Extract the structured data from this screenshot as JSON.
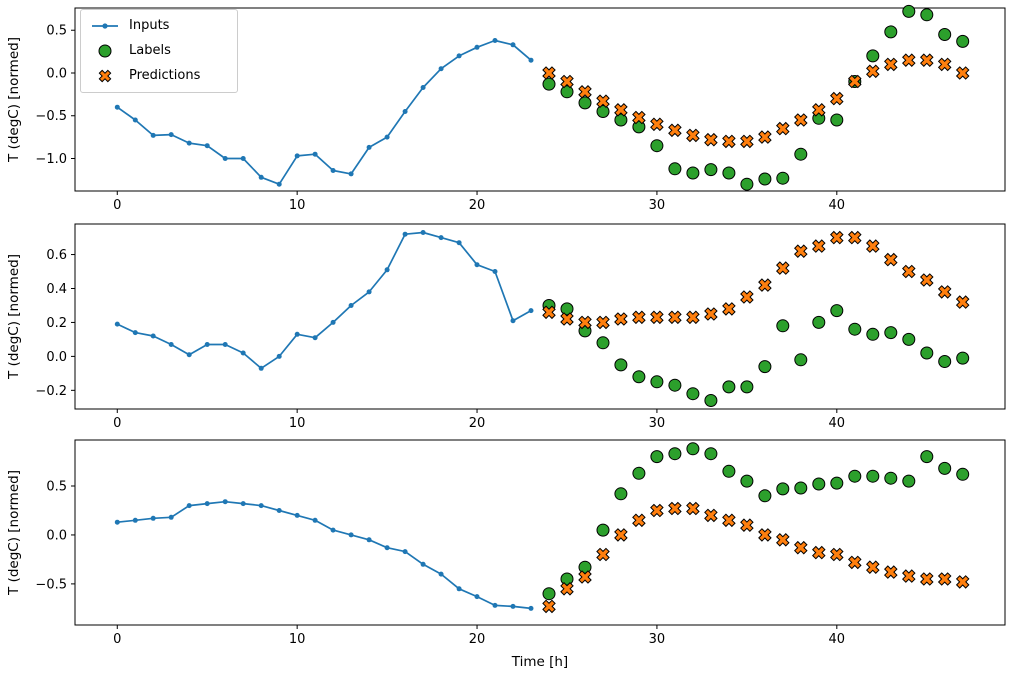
{
  "legend": {
    "items": [
      {
        "label": "Inputs",
        "marker": "line-dot",
        "color": "#1f77b4"
      },
      {
        "label": "Labels",
        "marker": "circle",
        "color": "#2ca02c"
      },
      {
        "label": "Predictions",
        "marker": "X",
        "color": "#ff7f0e"
      }
    ]
  },
  "chart_data": [
    {
      "type": "line",
      "title": "",
      "xlabel": "",
      "ylabel": "T (degC) [normed]",
      "xlim": [
        -2.35,
        49.35
      ],
      "ylim": [
        -1.38,
        0.76
      ],
      "xticks": [
        0,
        10,
        20,
        30,
        40
      ],
      "xtick_labels": [
        "0",
        "10",
        "20",
        "30",
        "40"
      ],
      "yticks": [
        0.5,
        0.0,
        -0.5,
        -1.0
      ],
      "ytick_labels": [
        "0.5",
        "0.0",
        "−0.5",
        "−1.0"
      ],
      "grid": false,
      "legend_position": "upper left",
      "series": [
        {
          "name": "Inputs",
          "kind": "line",
          "marker": "dot",
          "color": "#1f77b4",
          "x": [
            0,
            1,
            2,
            3,
            4,
            5,
            6,
            7,
            8,
            9,
            10,
            11,
            12,
            13,
            14,
            15,
            16,
            17,
            18,
            19,
            20,
            21,
            22,
            23
          ],
          "y": [
            -0.4,
            -0.55,
            -0.73,
            -0.72,
            -0.82,
            -0.85,
            -1.0,
            -1.0,
            -1.22,
            -1.3,
            -0.97,
            -0.95,
            -1.14,
            -1.18,
            -0.87,
            -0.75,
            -0.45,
            -0.17,
            0.05,
            0.2,
            0.3,
            0.38,
            0.33,
            0.15
          ]
        },
        {
          "name": "Labels",
          "kind": "scatter",
          "marker": "circle",
          "color": "#2ca02c",
          "x": [
            24,
            25,
            26,
            27,
            28,
            29,
            30,
            31,
            32,
            33,
            34,
            35,
            36,
            37,
            38,
            39,
            40,
            41,
            42,
            43,
            44,
            45,
            46,
            47
          ],
          "y": [
            -0.13,
            -0.22,
            -0.35,
            -0.45,
            -0.55,
            -0.63,
            -0.85,
            -1.12,
            -1.17,
            -1.13,
            -1.17,
            -1.3,
            -1.24,
            -1.23,
            -0.95,
            -0.53,
            -0.55,
            -0.1,
            0.2,
            0.48,
            0.72,
            0.68,
            0.45,
            0.37
          ]
        },
        {
          "name": "Predictions",
          "kind": "scatter",
          "marker": "X",
          "color": "#ff7f0e",
          "x": [
            24,
            25,
            26,
            27,
            28,
            29,
            30,
            31,
            32,
            33,
            34,
            35,
            36,
            37,
            38,
            39,
            40,
            41,
            42,
            43,
            44,
            45,
            46,
            47
          ],
          "y": [
            0.0,
            -0.1,
            -0.22,
            -0.33,
            -0.43,
            -0.52,
            -0.6,
            -0.67,
            -0.73,
            -0.78,
            -0.8,
            -0.8,
            -0.75,
            -0.65,
            -0.55,
            -0.43,
            -0.3,
            -0.1,
            0.02,
            0.1,
            0.15,
            0.15,
            0.1,
            0.0
          ]
        }
      ]
    },
    {
      "type": "line",
      "title": "",
      "xlabel": "",
      "ylabel": "T (degC) [normed]",
      "xlim": [
        -2.35,
        49.35
      ],
      "ylim": [
        -0.31,
        0.78
      ],
      "xticks": [
        0,
        10,
        20,
        30,
        40
      ],
      "xtick_labels": [
        "0",
        "10",
        "20",
        "30",
        "40"
      ],
      "yticks": [
        0.6,
        0.4,
        0.2,
        0.0,
        -0.2
      ],
      "ytick_labels": [
        "0.6",
        "0.4",
        "0.2",
        "0.0",
        "−0.2"
      ],
      "grid": false,
      "series": [
        {
          "name": "Inputs",
          "kind": "line",
          "marker": "dot",
          "color": "#1f77b4",
          "x": [
            0,
            1,
            2,
            3,
            4,
            5,
            6,
            7,
            8,
            9,
            10,
            11,
            12,
            13,
            14,
            15,
            16,
            17,
            18,
            19,
            20,
            21,
            22,
            23
          ],
          "y": [
            0.19,
            0.14,
            0.12,
            0.07,
            0.01,
            0.07,
            0.07,
            0.02,
            -0.07,
            0.0,
            0.13,
            0.11,
            0.2,
            0.3,
            0.38,
            0.51,
            0.72,
            0.73,
            0.7,
            0.67,
            0.54,
            0.5,
            0.21,
            0.27
          ]
        },
        {
          "name": "Labels",
          "kind": "scatter",
          "marker": "circle",
          "color": "#2ca02c",
          "x": [
            24,
            25,
            26,
            27,
            28,
            29,
            30,
            31,
            32,
            33,
            34,
            35,
            36,
            37,
            38,
            39,
            40,
            41,
            42,
            43,
            44,
            45,
            46,
            47
          ],
          "y": [
            0.3,
            0.28,
            0.15,
            0.08,
            -0.05,
            -0.12,
            -0.15,
            -0.17,
            -0.22,
            -0.26,
            -0.18,
            -0.18,
            -0.06,
            0.18,
            -0.02,
            0.2,
            0.27,
            0.16,
            0.13,
            0.14,
            0.1,
            0.02,
            -0.03,
            -0.01
          ]
        },
        {
          "name": "Predictions",
          "kind": "scatter",
          "marker": "X",
          "color": "#ff7f0e",
          "x": [
            24,
            25,
            26,
            27,
            28,
            29,
            30,
            31,
            32,
            33,
            34,
            35,
            36,
            37,
            38,
            39,
            40,
            41,
            42,
            43,
            44,
            45,
            46,
            47
          ],
          "y": [
            0.26,
            0.22,
            0.2,
            0.2,
            0.22,
            0.23,
            0.23,
            0.23,
            0.23,
            0.25,
            0.28,
            0.35,
            0.42,
            0.52,
            0.62,
            0.65,
            0.7,
            0.7,
            0.65,
            0.57,
            0.5,
            0.45,
            0.38,
            0.32
          ]
        }
      ]
    },
    {
      "type": "line",
      "title": "",
      "xlabel": "Time [h]",
      "ylabel": "T (degC) [normed]",
      "xlim": [
        -2.35,
        49.35
      ],
      "ylim": [
        -0.92,
        0.97
      ],
      "xticks": [
        0,
        10,
        20,
        30,
        40
      ],
      "xtick_labels": [
        "0",
        "10",
        "20",
        "30",
        "40"
      ],
      "yticks": [
        0.5,
        0.0,
        -0.5
      ],
      "ytick_labels": [
        "0.5",
        "0.0",
        "−0.5"
      ],
      "grid": false,
      "series": [
        {
          "name": "Inputs",
          "kind": "line",
          "marker": "dot",
          "color": "#1f77b4",
          "x": [
            0,
            1,
            2,
            3,
            4,
            5,
            6,
            7,
            8,
            9,
            10,
            11,
            12,
            13,
            14,
            15,
            16,
            17,
            18,
            19,
            20,
            21,
            22,
            23
          ],
          "y": [
            0.13,
            0.15,
            0.17,
            0.18,
            0.3,
            0.32,
            0.34,
            0.32,
            0.3,
            0.25,
            0.2,
            0.15,
            0.05,
            0.0,
            -0.05,
            -0.13,
            -0.17,
            -0.3,
            -0.4,
            -0.55,
            -0.63,
            -0.72,
            -0.73,
            -0.75
          ]
        },
        {
          "name": "Labels",
          "kind": "scatter",
          "marker": "circle",
          "color": "#2ca02c",
          "x": [
            24,
            25,
            26,
            27,
            28,
            29,
            30,
            31,
            32,
            33,
            34,
            35,
            36,
            37,
            38,
            39,
            40,
            41,
            42,
            43,
            44,
            45,
            46,
            47
          ],
          "y": [
            -0.6,
            -0.45,
            -0.33,
            0.05,
            0.42,
            0.63,
            0.8,
            0.83,
            0.88,
            0.83,
            0.65,
            0.55,
            0.4,
            0.47,
            0.48,
            0.52,
            0.53,
            0.6,
            0.6,
            0.58,
            0.55,
            0.8,
            0.68,
            0.62
          ]
        },
        {
          "name": "Predictions",
          "kind": "scatter",
          "marker": "X",
          "color": "#ff7f0e",
          "x": [
            24,
            25,
            26,
            27,
            28,
            29,
            30,
            31,
            32,
            33,
            34,
            35,
            36,
            37,
            38,
            39,
            40,
            41,
            42,
            43,
            44,
            45,
            46,
            47
          ],
          "y": [
            -0.73,
            -0.55,
            -0.43,
            -0.2,
            0.0,
            0.15,
            0.25,
            0.27,
            0.27,
            0.2,
            0.15,
            0.1,
            0.0,
            -0.05,
            -0.13,
            -0.18,
            -0.2,
            -0.28,
            -0.33,
            -0.38,
            -0.42,
            -0.45,
            -0.45,
            -0.48
          ]
        }
      ]
    }
  ]
}
